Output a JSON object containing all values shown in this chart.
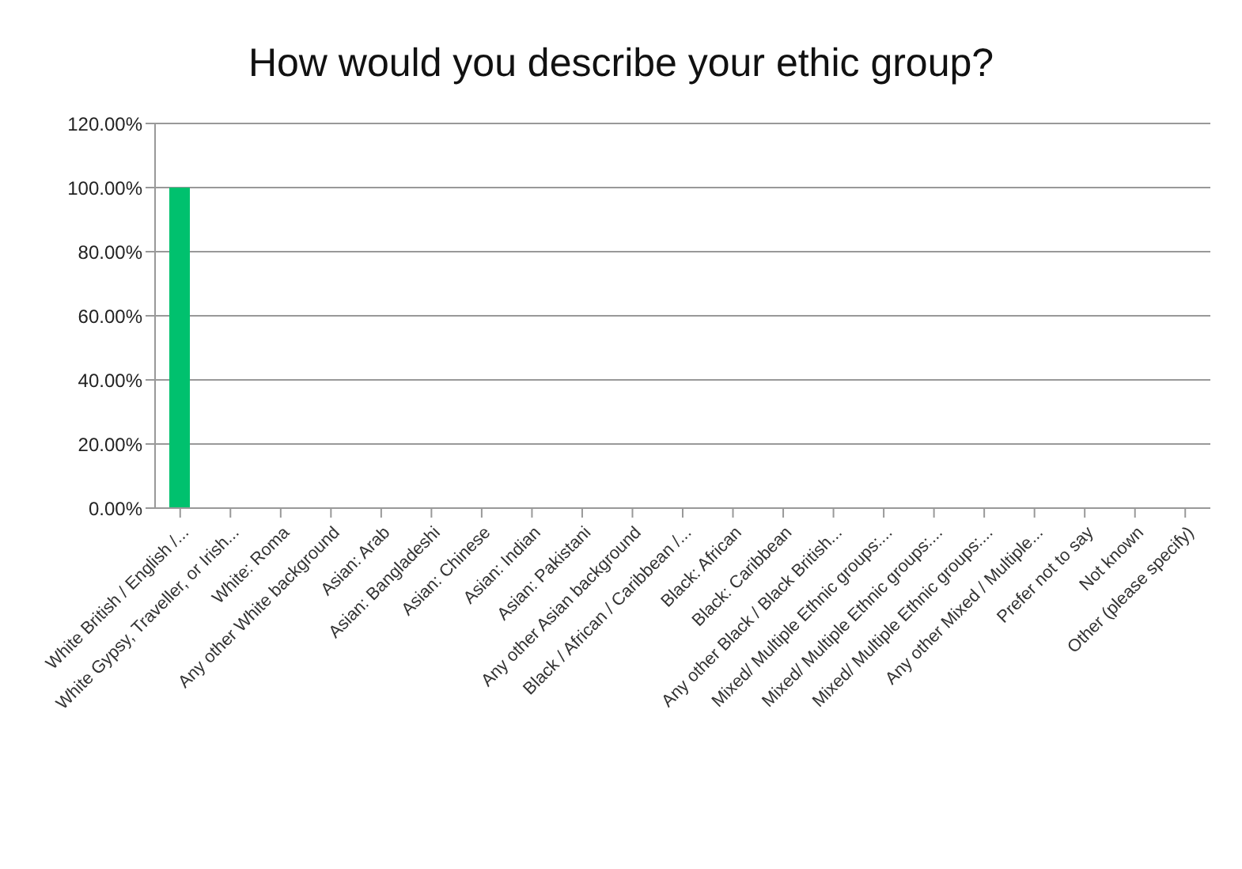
{
  "chart_data": {
    "type": "bar",
    "title": "How would you describe your ethic group?",
    "categories": [
      "White British / English /...",
      "White Gypsy, Traveller, or Irish...",
      "White: Roma",
      "Any other White background",
      "Asian: Arab",
      "Asian: Bangladeshi",
      "Asian: Chinese",
      "Asian: Indian",
      "Asian: Pakistani",
      "Any other Asian background",
      "Black / African / Caribbean /...",
      "Black: African",
      "Black: Caribbean",
      "Any other Black / Black British...",
      "Mixed/ Multiple Ethnic groups:...",
      "Mixed/ Multiple Ethnic groups:...",
      "Mixed/ Multiple Ethnic groups:...",
      "Any other Mixed / Multiple...",
      "Prefer not to say",
      "Not known",
      "Other (please specify)"
    ],
    "values": [
      100,
      0,
      0,
      0,
      0,
      0,
      0,
      0,
      0,
      0,
      0,
      0,
      0,
      0,
      0,
      0,
      0,
      0,
      0,
      0,
      0
    ],
    "color": "#00c16e",
    "ylim": [
      0,
      120
    ],
    "yticks": [
      {
        "value": 0,
        "label": "0.00%"
      },
      {
        "value": 20,
        "label": "20.00%"
      },
      {
        "value": 40,
        "label": "40.00%"
      },
      {
        "value": 60,
        "label": "60.00%"
      },
      {
        "value": 80,
        "label": "80.00%"
      },
      {
        "value": 100,
        "label": "100.00%"
      },
      {
        "value": 120,
        "label": "120.00%"
      }
    ],
    "grid": "y",
    "legend": false
  }
}
